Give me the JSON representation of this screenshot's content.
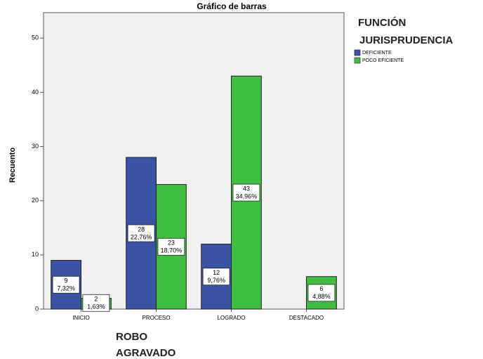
{
  "chart_data": {
    "type": "bar",
    "title": "Gráfico de barras",
    "x_label": [
      "ROBO",
      "AGRAVADO"
    ],
    "y_label": "Recuento",
    "legend_title": [
      "FUNCIÓN",
      "JURISPRUDENCIA"
    ],
    "categories": [
      "INICIO",
      "PROCESO",
      "LOGRADO",
      "DESTACADO"
    ],
    "series": [
      {
        "name": "DEFICIENTE",
        "color": "#3a53a4",
        "values": [
          9,
          28,
          12,
          null
        ],
        "percentages": [
          7.32,
          22.76,
          9.76,
          null
        ],
        "percentage_labels": [
          "7,32%",
          "22,76%",
          "9,76%",
          null
        ]
      },
      {
        "name": "POCO EFICIENTE",
        "color": "#3fbf3f",
        "values": [
          2,
          23,
          43,
          6
        ],
        "percentages": [
          1.63,
          18.7,
          34.96,
          4.88
        ],
        "percentage_labels": [
          "1,63%",
          "18,70%",
          "34,96%",
          "4,88%"
        ]
      }
    ],
    "ylim": [
      0,
      54.7
    ],
    "yticks": [
      0,
      10,
      20,
      30,
      40,
      50
    ],
    "legend": "right"
  }
}
